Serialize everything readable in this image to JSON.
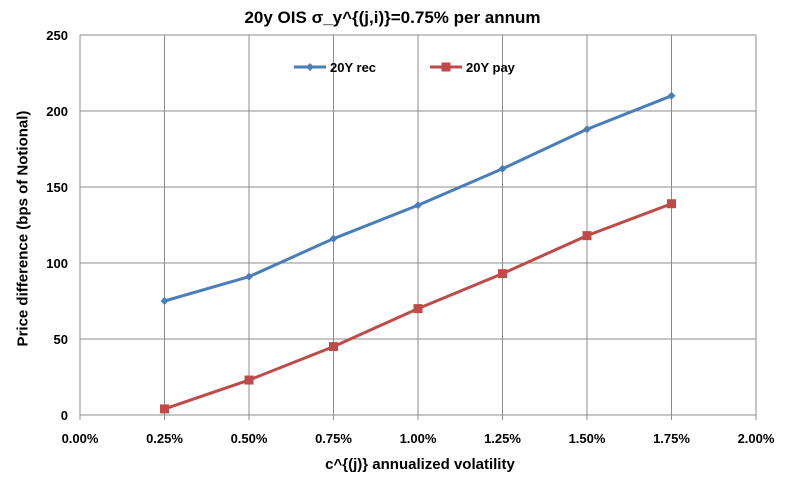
{
  "chart_data": {
    "type": "line",
    "title": "20y OIS  σ_y^{(j,i)}=0.75%  per annum",
    "xlabel": "c^{(j)} annualized volatility",
    "ylabel": "Price difference (bps of Notional)",
    "x_ticks": [
      "0.00%",
      "0.25%",
      "0.50%",
      "0.75%",
      "1.00%",
      "1.25%",
      "1.50%",
      "1.75%",
      "2.00%"
    ],
    "y_ticks": [
      "0",
      "50",
      "100",
      "150",
      "200",
      "250"
    ],
    "xlim": [
      0,
      2
    ],
    "ylim": [
      0,
      250
    ],
    "grid": true,
    "legend_position": "top-left",
    "x": [
      0.25,
      0.5,
      0.75,
      1.0,
      1.25,
      1.5,
      1.75
    ],
    "series": [
      {
        "name": "20Y rec",
        "color": "#4a7ebb",
        "marker": "diamond",
        "values": [
          75,
          91,
          116,
          138,
          162,
          188,
          210
        ]
      },
      {
        "name": "20Y pay",
        "color": "#be4b48",
        "marker": "square",
        "values": [
          4,
          23,
          45,
          70,
          93,
          118,
          139
        ]
      }
    ]
  }
}
